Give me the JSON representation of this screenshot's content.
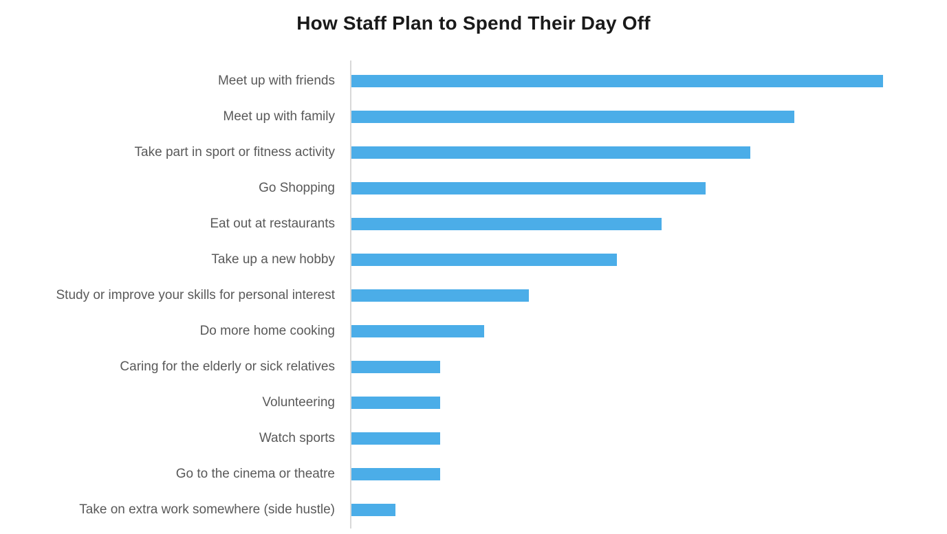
{
  "chart_data": {
    "type": "bar",
    "orientation": "horizontal",
    "title": "How Staff Plan to Spend Their Day Off",
    "categories": [
      "Meet up with friends",
      "Meet up with family",
      "Take part in sport or fitness activity",
      "Go Shopping",
      "Eat out at restaurants",
      "Take up a new hobby",
      "Study or improve your skills for personal interest",
      "Do more home cooking",
      "Caring for the elderly or sick relatives",
      "Volunteering",
      "Watch sports",
      "Go to the cinema or theatre",
      "Take on extra work somewhere (side hustle)"
    ],
    "values": [
      12,
      10,
      9,
      8,
      7,
      6,
      4,
      3,
      2,
      2,
      2,
      2,
      1
    ],
    "xlabel": "",
    "ylabel": "",
    "xlim": [
      0,
      13.4
    ],
    "grid": false,
    "legend": "none",
    "axis_tick_labels_visible": false,
    "bar_color": "#4bade8",
    "axis_line_color": "#d8d8d8",
    "label_color": "#595959",
    "title_color": "#1a1a1a"
  }
}
